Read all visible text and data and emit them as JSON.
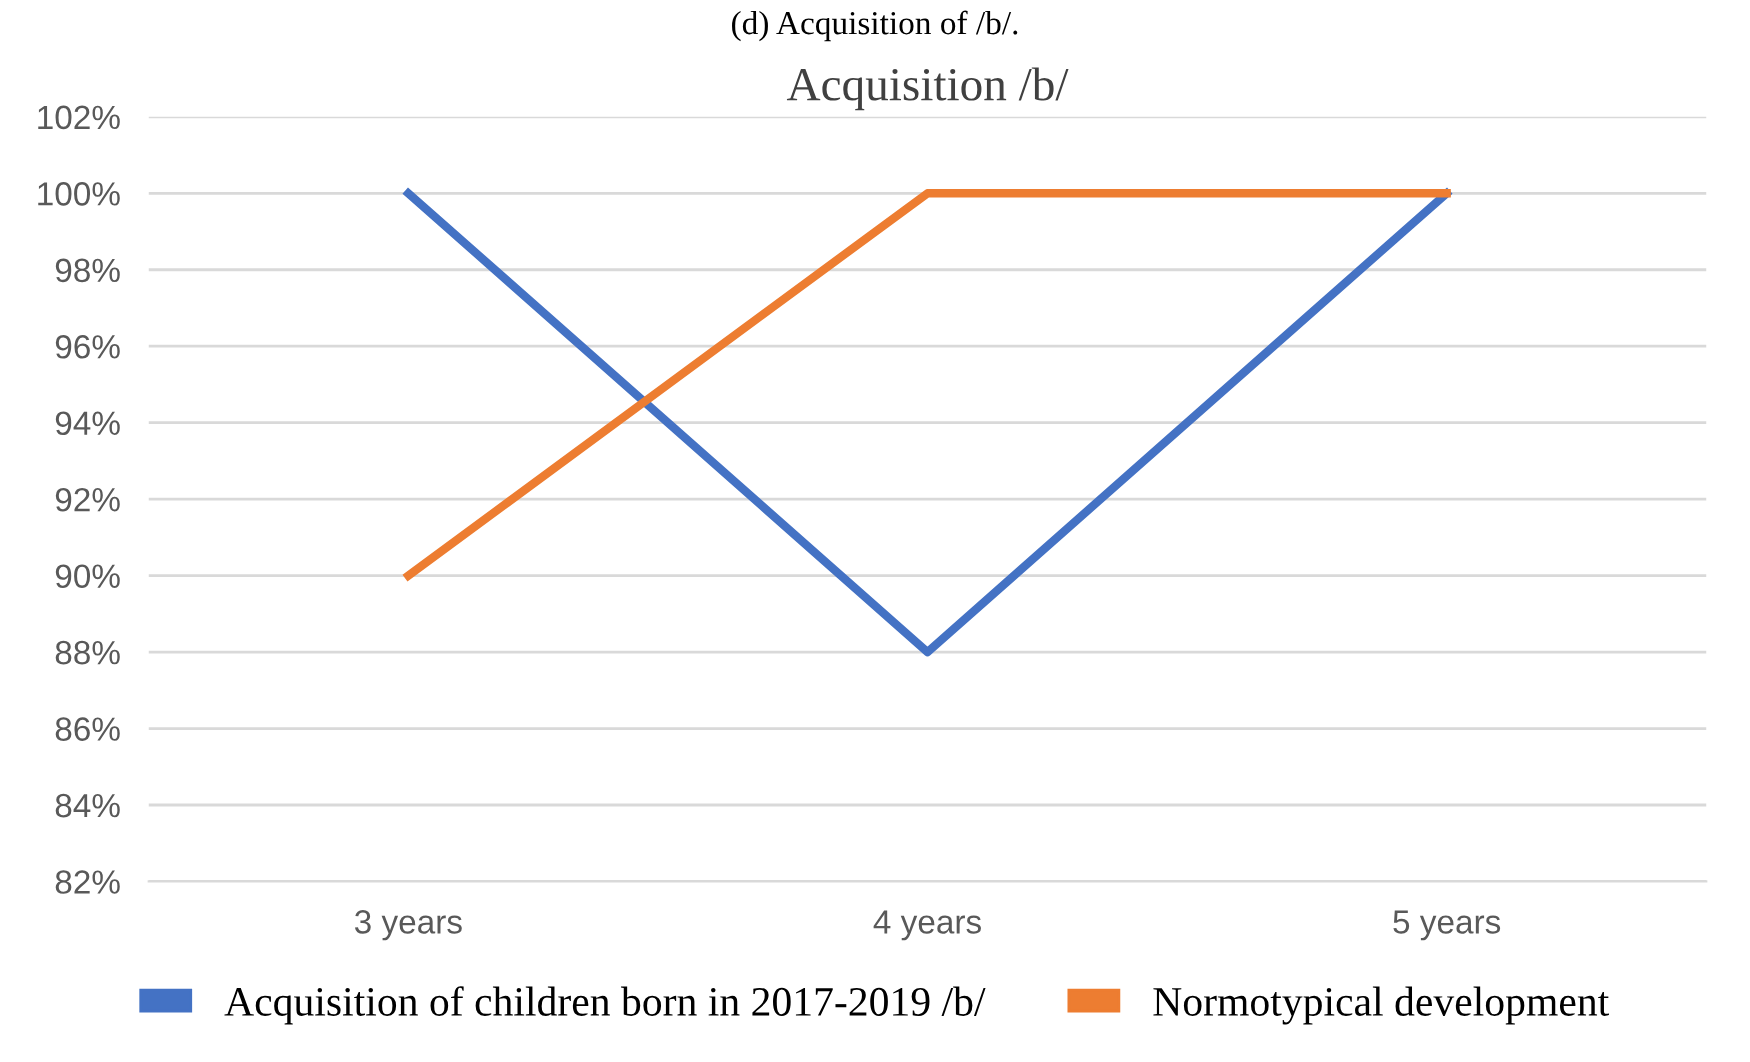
{
  "chart_data": {
    "type": "line",
    "title": "Acquisition /b/",
    "annotations": [
      "(d) Acquisition of /b/."
    ],
    "categories": [
      "3 years",
      "4 years",
      "5 years"
    ],
    "series": [
      {
        "name": "Acquisition of children born in 2017-2019 /b/",
        "color": "#4472c4",
        "values": [
          100,
          88,
          100
        ]
      },
      {
        "name": "Normotypical development",
        "color": "#ed7d31",
        "values": [
          90,
          100,
          100
        ]
      }
    ],
    "ylim": [
      82,
      102
    ],
    "yticks": [
      {
        "value": 82,
        "label": "82%"
      },
      {
        "value": 84,
        "label": "84%"
      },
      {
        "value": 86,
        "label": "86%"
      },
      {
        "value": 88,
        "label": "88%"
      },
      {
        "value": 90,
        "label": "90%"
      },
      {
        "value": 92,
        "label": "92%"
      },
      {
        "value": 94,
        "label": "94%"
      },
      {
        "value": 96,
        "label": "96%"
      },
      {
        "value": 98,
        "label": "98%"
      },
      {
        "value": 100,
        "label": "100%"
      },
      {
        "value": 102,
        "label": "102%"
      }
    ],
    "grid": "y",
    "legend": "bottom",
    "marker": "none",
    "line_style": "solid"
  }
}
